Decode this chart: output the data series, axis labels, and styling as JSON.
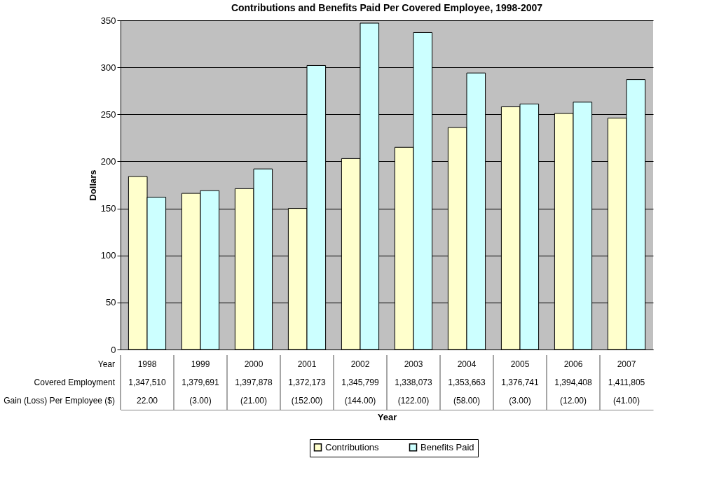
{
  "chart_data": {
    "type": "bar",
    "title": "Contributions and Benefits Paid Per Covered Employee, 1998-2007",
    "xlabel": "Year",
    "ylabel": "Dollars",
    "categories": [
      "1998",
      "1999",
      "2000",
      "2001",
      "2002",
      "2003",
      "2004",
      "2005",
      "2006",
      "2007"
    ],
    "series": [
      {
        "name": "Contributions",
        "color": "#ffffcc",
        "values": [
          184,
          166,
          171,
          150,
          203,
          215,
          236,
          258,
          251,
          246
        ]
      },
      {
        "name": "Benefits Paid",
        "color": "#ccffff",
        "values": [
          162,
          169,
          192,
          302,
          347,
          337,
          294,
          261,
          263,
          287
        ]
      }
    ],
    "ylim": [
      0,
      350
    ],
    "yticks": [
      0,
      50,
      100,
      150,
      200,
      250,
      300,
      350
    ],
    "grid": "y",
    "legend": "bottom",
    "annotations": [
      "Year",
      "Covered Employment",
      "1,347,510",
      "1,379,691",
      "1,397,878",
      "1,372,173",
      "1,345,799",
      "1,338,073",
      "1,353,663",
      "1,376,741",
      "1,394,408",
      "1,411,805",
      "Gain (Loss) Per Employee ($)",
      "22.00",
      "(3.00)",
      "(21.00)",
      "(152.00)",
      "(144.00)",
      "(122.00)",
      "(58.00)",
      "(3.00)",
      "(12.00)",
      "(41.00)"
    ]
  }
}
